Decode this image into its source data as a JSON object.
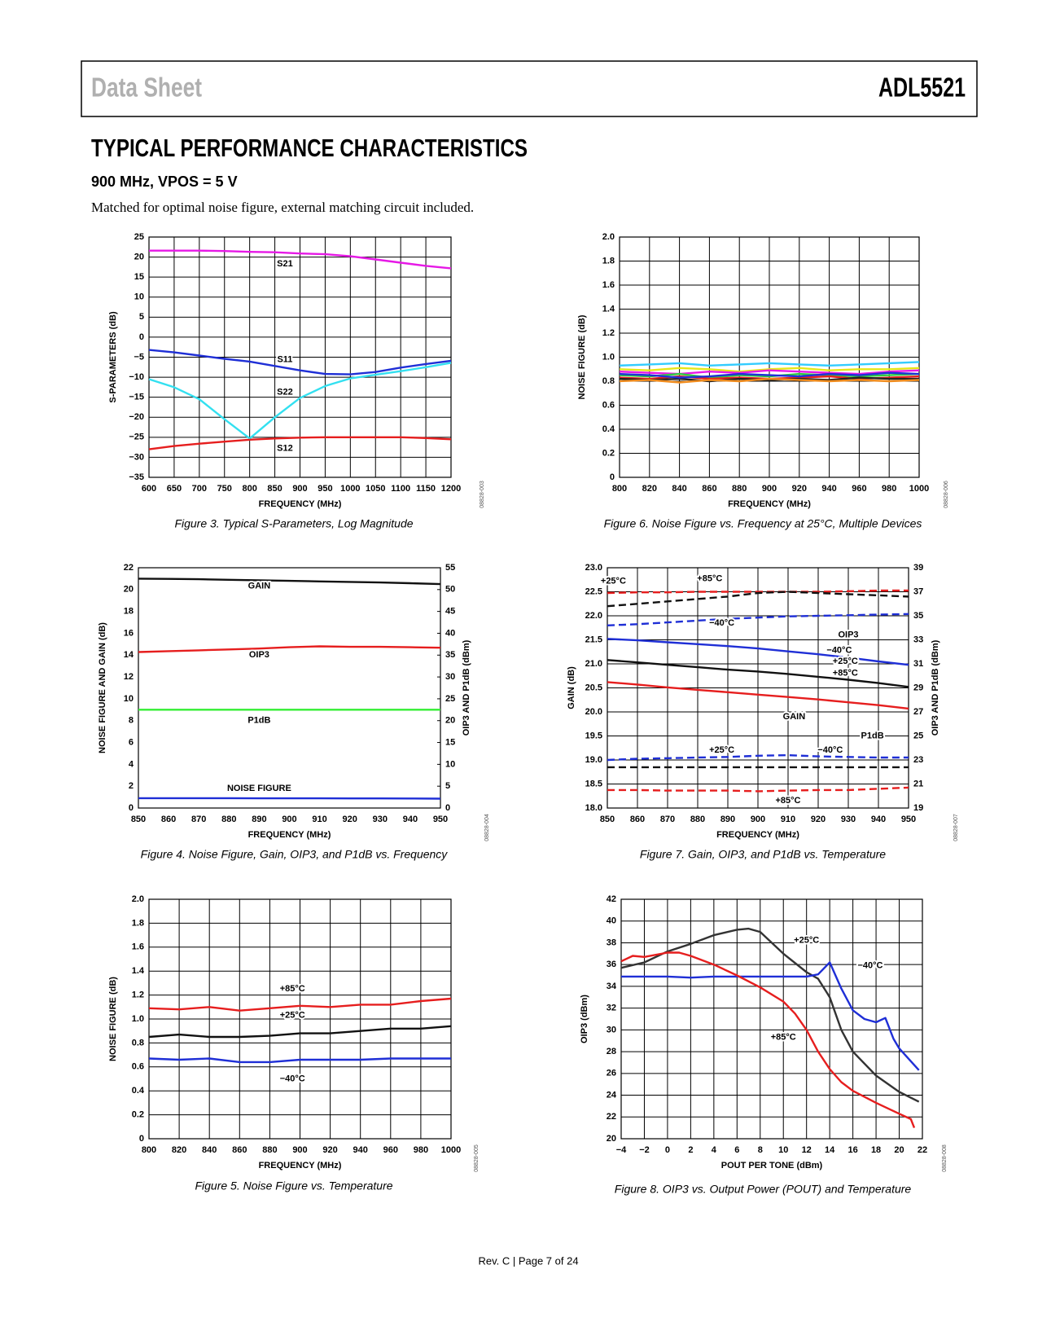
{
  "header": {
    "left": "Data Sheet",
    "right": "ADL5521"
  },
  "heading": "TYPICAL PERFORMANCE CHARACTERISTICS",
  "subheading": "900 MHz, VPOS = 5 V",
  "intro": "Matched for optimal noise figure, external matching circuit included.",
  "footer": "Rev. C | Page 7 of 24",
  "chart_data": [
    {
      "type": "line",
      "caption": "Figure 3. Typical S-Parameters, Log Magnitude",
      "code": "08828-003",
      "xlabel": "FREQUENCY (MHz)",
      "ylabel": "S-PARAMETERS (dB)",
      "grid": true,
      "x": [
        600,
        650,
        700,
        750,
        800,
        850,
        900,
        950,
        1000,
        1050,
        1100,
        1150,
        1200
      ],
      "xlim": [
        600,
        1200
      ],
      "xticks": [
        600,
        650,
        700,
        750,
        800,
        850,
        900,
        950,
        1000,
        1050,
        1100,
        1150,
        1200
      ],
      "ylim": [
        -35,
        25
      ],
      "yticks": [
        {
          "value": -35,
          "label": "−35"
        },
        {
          "value": -30,
          "label": "−30"
        },
        {
          "value": -25,
          "label": "−25"
        },
        {
          "value": -20,
          "label": "−20"
        },
        {
          "value": -15,
          "label": "−15"
        },
        {
          "value": -10,
          "label": "−10"
        },
        {
          "value": -5,
          "label": "−5"
        },
        0,
        5,
        10,
        15,
        20,
        25
      ],
      "series": [
        {
          "name": "S21",
          "color": "#e619e6",
          "values": [
            21.6,
            21.6,
            21.6,
            21.5,
            21.3,
            21.2,
            20.9,
            20.7,
            20.2,
            19.4,
            18.6,
            17.8,
            17.2
          ]
        },
        {
          "name": "S11",
          "color": "#1f2fd6",
          "values": [
            -3.2,
            -3.8,
            -4.6,
            -5.4,
            -6.1,
            -7.2,
            -8.3,
            -9.2,
            -9.3,
            -8.7,
            -7.6,
            -6.7,
            -5.9
          ]
        },
        {
          "name": "S22",
          "color": "#33e0f0",
          "values": [
            -10.5,
            -12.5,
            -15.5,
            -20.5,
            -25.3,
            -20,
            -15.2,
            -12.2,
            -10.3,
            -9.4,
            -8.5,
            -7.5,
            -6.4
          ]
        },
        {
          "name": "S12",
          "color": "#e61e1e",
          "values": [
            -28,
            -27.2,
            -26.6,
            -26.1,
            -25.6,
            -25.3,
            -25.1,
            -25,
            -25,
            -25,
            -25,
            -25.2,
            -25.5
          ]
        }
      ]
    },
    {
      "type": "line",
      "caption": "Figure 6. Noise Figure vs. Frequency at 25°C, Multiple Devices",
      "code": "08828-006",
      "xlabel": "FREQUENCY (MHz)",
      "ylabel": "NOISE FIGURE (dB)",
      "grid": true,
      "x": [
        800,
        820,
        840,
        860,
        880,
        900,
        920,
        940,
        960,
        980,
        1000
      ],
      "xlim": [
        800,
        1000
      ],
      "xticks": [
        800,
        820,
        840,
        860,
        880,
        900,
        920,
        940,
        960,
        980,
        1000
      ],
      "ylim": [
        0,
        2
      ],
      "yticks": [
        0,
        0.2,
        0.4,
        0.6,
        0.8,
        {
          "value": 1,
          "label": "1.0"
        },
        1.2,
        1.4,
        1.6,
        1.8,
        {
          "value": 2,
          "label": "2.0"
        }
      ],
      "series": [
        {
          "color": "#33ccff",
          "values": [
            0.93,
            0.94,
            0.95,
            0.93,
            0.94,
            0.95,
            0.94,
            0.93,
            0.94,
            0.95,
            0.96
          ]
        },
        {
          "color": "#e6e619",
          "values": [
            0.9,
            0.89,
            0.91,
            0.9,
            0.88,
            0.9,
            0.91,
            0.89,
            0.9,
            0.9,
            0.91
          ]
        },
        {
          "color": "#e619e6",
          "values": [
            0.88,
            0.87,
            0.86,
            0.88,
            0.87,
            0.89,
            0.88,
            0.87,
            0.86,
            0.88,
            0.89
          ]
        },
        {
          "color": "#2ecc40",
          "values": [
            0.85,
            0.84,
            0.86,
            0.83,
            0.85,
            0.84,
            0.86,
            0.85,
            0.84,
            0.85,
            0.86
          ]
        },
        {
          "color": "#e61e1e",
          "values": [
            0.83,
            0.82,
            0.84,
            0.82,
            0.83,
            0.82,
            0.83,
            0.84,
            0.82,
            0.83,
            0.84
          ]
        },
        {
          "color": "#222222",
          "values": [
            0.82,
            0.81,
            0.82,
            0.8,
            0.82,
            0.81,
            0.82,
            0.81,
            0.83,
            0.82,
            0.82
          ]
        },
        {
          "color": "#1f2fd6",
          "values": [
            0.86,
            0.85,
            0.83,
            0.84,
            0.86,
            0.85,
            0.84,
            0.86,
            0.85,
            0.87,
            0.86
          ]
        },
        {
          "color": "#f08c1e",
          "values": [
            0.8,
            0.81,
            0.79,
            0.81,
            0.8,
            0.82,
            0.81,
            0.8,
            0.81,
            0.8,
            0.81
          ]
        }
      ]
    },
    {
      "type": "line",
      "caption": "Figure 4. Noise Figure, Gain, OIP3, and P1dB vs. Frequency",
      "code": "08828-004",
      "xlabel": "FREQUENCY (MHz)",
      "ylabel": "NOISE FIGURE AND GAIN (dB)",
      "y2label": "OIP3 AND P1dB (dBm)",
      "grid": false,
      "x": [
        850,
        860,
        870,
        880,
        890,
        900,
        910,
        920,
        930,
        940,
        950
      ],
      "xlim": [
        850,
        950
      ],
      "xticks": [
        850,
        860,
        870,
        880,
        890,
        900,
        910,
        920,
        930,
        940,
        950
      ],
      "ylim": [
        0,
        22
      ],
      "yticks": [
        0,
        2,
        4,
        6,
        8,
        10,
        12,
        14,
        16,
        18,
        20,
        22
      ],
      "y2lim": [
        0,
        55
      ],
      "y2ticks": [
        0,
        5,
        10,
        15,
        20,
        25,
        30,
        35,
        40,
        45,
        50,
        55
      ],
      "series": [
        {
          "name": "GAIN",
          "color": "#111111",
          "values": [
            21,
            20.98,
            20.95,
            20.9,
            20.85,
            20.8,
            20.75,
            20.7,
            20.65,
            20.58,
            20.5
          ]
        },
        {
          "name": "OIP3",
          "color": "#e61e1e",
          "axis": "y2",
          "values": [
            35.7,
            35.9,
            36.1,
            36.3,
            36.5,
            36.8,
            37,
            36.9,
            36.9,
            36.8,
            36.7
          ]
        },
        {
          "name": "P1dB",
          "color": "#33ee33",
          "axis": "y2",
          "values": [
            22.5,
            22.5,
            22.5,
            22.5,
            22.5,
            22.5,
            22.5,
            22.5,
            22.5,
            22.5,
            22.5
          ]
        },
        {
          "name": "NOISE FIGURE",
          "color": "#1f2fd6",
          "values": [
            0.9,
            0.9,
            0.9,
            0.9,
            0.89,
            0.89,
            0.89,
            0.88,
            0.88,
            0.87,
            0.86
          ]
        }
      ]
    },
    {
      "type": "line",
      "caption": "Figure 7. Gain, OIP3, and P1dB vs. Temperature",
      "code": "08828-007",
      "xlabel": "FREQUENCY (MHz)",
      "ylabel": "GAIN (dB)",
      "y2label": "OIP3 AND P1dB (dBm)",
      "grid": true,
      "x": [
        850,
        860,
        870,
        880,
        890,
        900,
        910,
        920,
        930,
        940,
        950
      ],
      "xlim": [
        850,
        950
      ],
      "xticks": [
        850,
        860,
        870,
        880,
        890,
        900,
        910,
        920,
        930,
        940,
        950
      ],
      "ylim": [
        18,
        23
      ],
      "yticks": [
        {
          "value": 18,
          "label": "18.0"
        },
        18.5,
        {
          "value": 19,
          "label": "19.0"
        },
        19.5,
        {
          "value": 20,
          "label": "20.0"
        },
        20.5,
        {
          "value": 21,
          "label": "21.0"
        },
        21.5,
        {
          "value": 22,
          "label": "22.0"
        },
        22.5,
        {
          "value": 23,
          "label": "23.0"
        }
      ],
      "y2lim": [
        19,
        39
      ],
      "y2ticks": [
        19,
        21,
        23,
        25,
        27,
        29,
        31,
        33,
        35,
        37,
        39
      ],
      "series": [
        {
          "color": "#1f2fd6",
          "values": [
            21.52,
            21.49,
            21.45,
            21.41,
            21.37,
            21.32,
            21.26,
            21.2,
            21.13,
            21.05,
            20.98
          ]
        },
        {
          "color": "#111111",
          "values": [
            21.08,
            21.03,
            20.98,
            20.93,
            20.88,
            20.84,
            20.79,
            20.73,
            20.67,
            20.6,
            20.52
          ]
        },
        {
          "color": "#e61e1e",
          "values": [
            20.62,
            20.57,
            20.51,
            20.46,
            20.41,
            20.36,
            20.31,
            20.26,
            20.2,
            20.14,
            20.07
          ]
        },
        {
          "color": "#e61e1e",
          "axis": "y2",
          "dash": true,
          "values": [
            36.9,
            36.95,
            36.95,
            37,
            37,
            37,
            37,
            37,
            37.05,
            37.1,
            37.1
          ]
        },
        {
          "color": "#111111",
          "axis": "y2",
          "dash": true,
          "values": [
            35.8,
            36,
            36.2,
            36.4,
            36.6,
            36.9,
            37,
            36.9,
            36.8,
            36.7,
            36.6
          ]
        },
        {
          "color": "#1f2fd6",
          "axis": "y2",
          "dash": true,
          "values": [
            34.2,
            34.3,
            34.45,
            34.6,
            34.75,
            34.85,
            34.95,
            35,
            35.05,
            35.1,
            35.15
          ]
        },
        {
          "color": "#1f2fd6",
          "axis": "y2",
          "dash": true,
          "values": [
            23,
            23.1,
            23.15,
            23.2,
            23.25,
            23.35,
            23.4,
            23.3,
            23.25,
            23.2,
            23.2
          ]
        },
        {
          "color": "#111111",
          "axis": "y2",
          "dash": true,
          "values": [
            22.4,
            22.4,
            22.4,
            22.4,
            22.4,
            22.4,
            22.4,
            22.4,
            22.4,
            22.4,
            22.4
          ]
        },
        {
          "color": "#e61e1e",
          "axis": "y2",
          "dash": true,
          "values": [
            20.5,
            20.5,
            20.45,
            20.45,
            20.45,
            20.4,
            20.45,
            20.5,
            20.5,
            20.6,
            20.7
          ]
        }
      ],
      "annotations": [
        "+25°C",
        "+85°C",
        "−40°C",
        "OIP3",
        "−40°C",
        "+25°C",
        "+85°C",
        "GAIN",
        "+25°C",
        "−40°C",
        "P1dB",
        "+85°C"
      ]
    },
    {
      "type": "line",
      "caption": "Figure 5. Noise Figure vs. Temperature",
      "code": "08828-005",
      "xlabel": "FREQUENCY (MHz)",
      "ylabel": "NOISE FIGURE (dB)",
      "grid": true,
      "x": [
        800,
        820,
        840,
        860,
        880,
        900,
        920,
        940,
        960,
        980,
        1000
      ],
      "xlim": [
        800,
        1000
      ],
      "xticks": [
        800,
        820,
        840,
        860,
        880,
        900,
        920,
        940,
        960,
        980,
        1000
      ],
      "ylim": [
        0,
        2
      ],
      "yticks": [
        0,
        0.2,
        0.4,
        0.6,
        0.8,
        {
          "value": 1,
          "label": "1.0"
        },
        1.2,
        1.4,
        1.6,
        1.8,
        {
          "value": 2,
          "label": "2.0"
        }
      ],
      "series": [
        {
          "name": "+85°C",
          "color": "#e61e1e",
          "values": [
            1.09,
            1.08,
            1.1,
            1.07,
            1.09,
            1.11,
            1.1,
            1.12,
            1.12,
            1.15,
            1.17
          ]
        },
        {
          "name": "+25°C",
          "color": "#111111",
          "values": [
            0.85,
            0.87,
            0.85,
            0.85,
            0.86,
            0.88,
            0.88,
            0.9,
            0.92,
            0.92,
            0.94
          ]
        },
        {
          "name": "−40°C",
          "color": "#1f2fd6",
          "values": [
            0.67,
            0.66,
            0.67,
            0.64,
            0.64,
            0.66,
            0.66,
            0.66,
            0.67,
            0.67,
            0.67
          ]
        }
      ]
    },
    {
      "type": "line",
      "caption": "Figure 8. OIP3 vs. Output Power (POUT) and Temperature",
      "code": "08828-008",
      "xlabel": "POUT PER TONE (dBm)",
      "ylabel": "OIP3 (dBm)",
      "grid": true,
      "xlim": [
        -4,
        22
      ],
      "xticks": [
        {
          "value": -4,
          "label": "−4"
        },
        {
          "value": -2,
          "label": "−2"
        },
        0,
        2,
        4,
        6,
        8,
        10,
        12,
        14,
        16,
        18,
        20,
        22
      ],
      "ylim": [
        20,
        42
      ],
      "yticks": [
        20,
        22,
        24,
        26,
        28,
        30,
        32,
        34,
        36,
        38,
        40,
        42
      ],
      "series": [
        {
          "name": "+25°C",
          "color": "#333333",
          "x": [
            -4,
            -2,
            0,
            2,
            4,
            6,
            7,
            8,
            10,
            12,
            13,
            14,
            15,
            16,
            18,
            20,
            21.7
          ],
          "values": [
            35.7,
            36.2,
            37.2,
            37.9,
            38.7,
            39.2,
            39.3,
            39,
            37,
            35.3,
            34.7,
            33,
            30,
            28,
            25.8,
            24.3,
            23.4
          ]
        },
        {
          "name": "−40°C",
          "color": "#1f2fd6",
          "x": [
            -4,
            -2,
            0,
            2,
            4,
            6,
            8,
            10,
            12,
            13,
            14,
            15,
            16,
            17,
            18,
            18.8,
            19.5,
            20,
            21.7
          ],
          "values": [
            34.9,
            34.9,
            34.9,
            34.8,
            34.9,
            34.9,
            34.9,
            34.9,
            34.9,
            35.1,
            36.2,
            33.8,
            31.8,
            31,
            30.7,
            31.1,
            29.2,
            28.3,
            26.3
          ]
        },
        {
          "name": "+85°C",
          "color": "#e61e1e",
          "x": [
            -4,
            -3,
            -2,
            0,
            1,
            2,
            4,
            6,
            8,
            10,
            11,
            12,
            13,
            14,
            15,
            16,
            18,
            20,
            21,
            21.3
          ],
          "values": [
            36.3,
            36.8,
            36.7,
            37.1,
            37.1,
            36.8,
            36,
            35,
            33.9,
            32.6,
            31.5,
            30,
            28,
            26.4,
            25.2,
            24.4,
            23.3,
            22.3,
            21.8,
            21
          ]
        }
      ]
    }
  ]
}
